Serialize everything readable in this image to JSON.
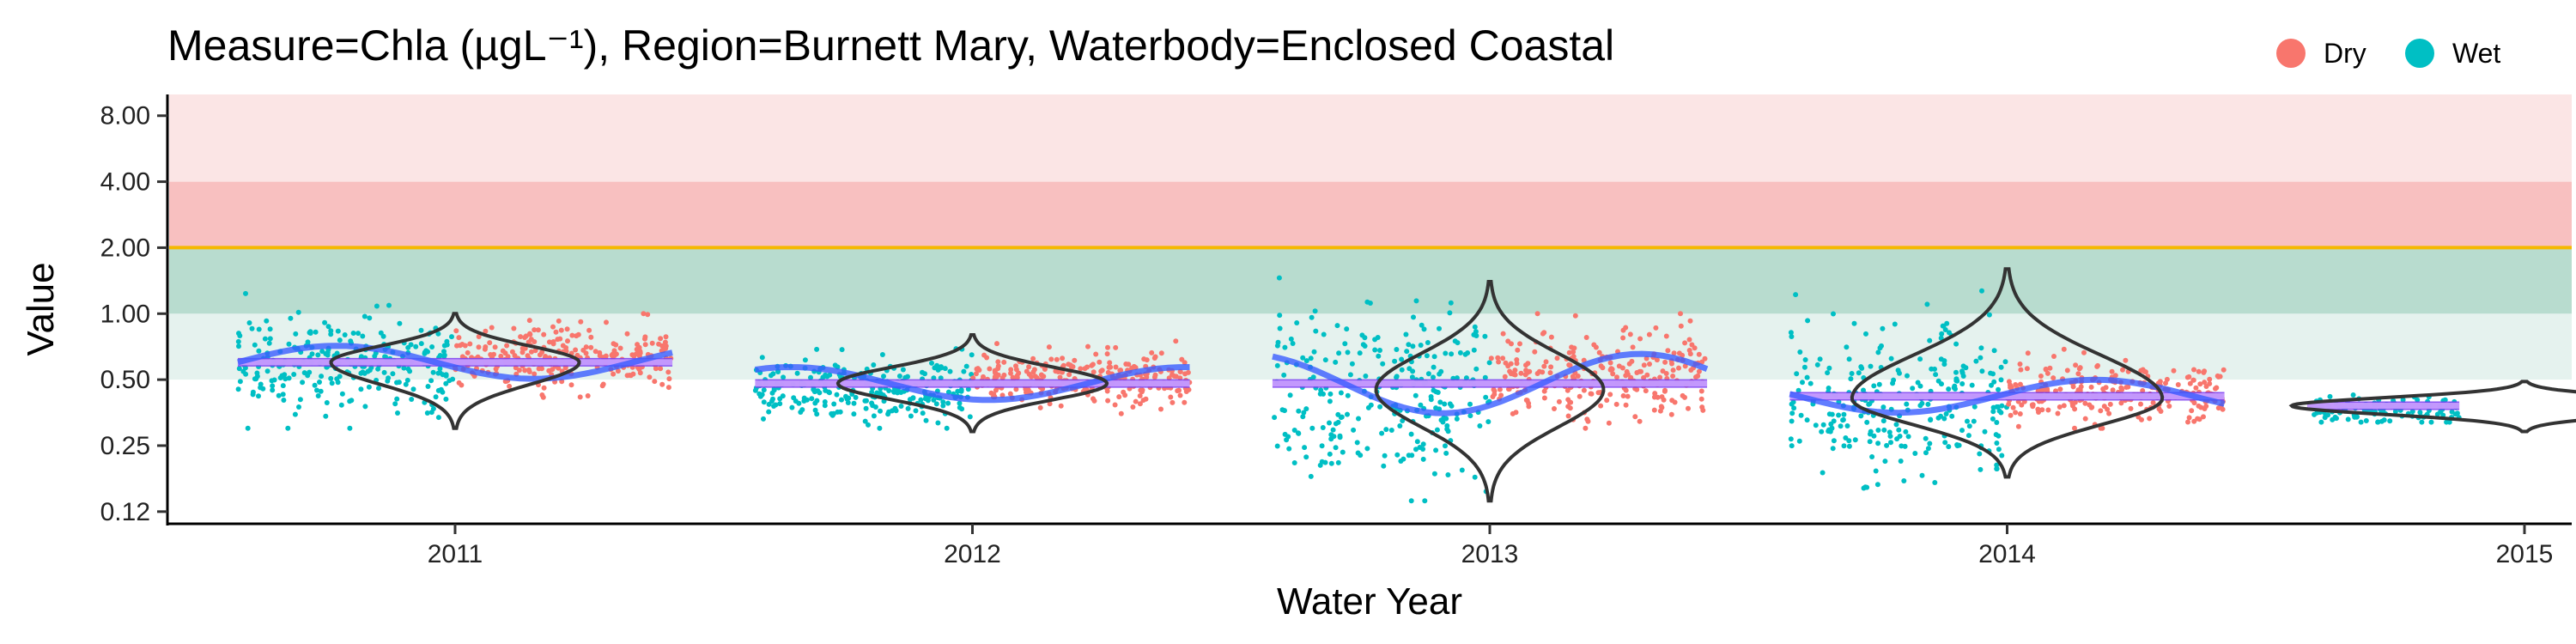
{
  "chart_data": {
    "type": "scatter",
    "title": "Measure=Chla (µgL⁻¹), Region=Burnett Mary, Waterbody=Enclosed Coastal",
    "xlabel": "Water Year",
    "ylabel": "Value",
    "y_scale": "log2",
    "ylim": [
      0.11,
      10.0
    ],
    "y_ticks": [
      "0.12",
      "0.25",
      "0.50",
      "1.00",
      "2.00",
      "4.00",
      "8.00"
    ],
    "y_tick_values": [
      0.125,
      0.25,
      0.5,
      1.0,
      2.0,
      4.0,
      8.0
    ],
    "x_ticks": [
      "2011",
      "2012",
      "2013",
      "2014",
      "2015"
    ],
    "guideline": 2.0,
    "bands": [
      {
        "from": 0.5,
        "to": 1.0,
        "color": "#e5f2ee"
      },
      {
        "from": 1.0,
        "to": 2.0,
        "color": "#b8dccf"
      },
      {
        "from": 2.0,
        "to": 4.0,
        "color": "#f8c0c0"
      },
      {
        "from": 4.0,
        "to": 10.0,
        "color": "#fbe5e5"
      }
    ],
    "colors": {
      "Dry": "#f8766d",
      "Wet": "#00bfc4",
      "trend": "#7a3cf0",
      "median": "#c9a0ff",
      "guideline": "#f5b800",
      "violin": "#333333"
    },
    "legend": {
      "position": "top-right",
      "entries": [
        "Dry",
        "Wet"
      ]
    },
    "years": [
      {
        "year": "2011",
        "median": 0.6,
        "wet_median": 0.58,
        "dry_median": 0.63,
        "wet_range": [
          0.3,
          1.3
        ],
        "dry_range": [
          0.4,
          1.0
        ],
        "violin_range": [
          0.3,
          1.0
        ],
        "violin_mode": 0.6,
        "violin_width": 0.24
      },
      {
        "year": "2012",
        "median": 0.48,
        "wet_median": 0.45,
        "dry_median": 0.5,
        "wet_range": [
          0.3,
          0.75
        ],
        "dry_range": [
          0.35,
          0.75
        ],
        "violin_range": [
          0.29,
          0.8
        ],
        "violin_mode": 0.48,
        "violin_width": 0.26
      },
      {
        "year": "2013",
        "median": 0.48,
        "wet_median": 0.42,
        "dry_median": 0.52,
        "wet_range": [
          0.14,
          1.5
        ],
        "dry_range": [
          0.3,
          1.0
        ],
        "violin_range": [
          0.14,
          1.4
        ],
        "violin_mode": 0.45,
        "violin_width": 0.22
      },
      {
        "year": "2014",
        "median": 0.42,
        "wet_median": 0.4,
        "dry_median": 0.44,
        "wet_range": [
          0.16,
          1.6
        ],
        "dry_range": [
          0.3,
          0.7
        ],
        "violin_range": [
          0.18,
          1.6
        ],
        "violin_mode": 0.41,
        "violin_width": 0.3
      },
      {
        "year": "2015",
        "median": 0.38,
        "wet_median": 0.36,
        "dry_median": 0.38,
        "wet_range": [
          0.32,
          0.48
        ],
        "dry_range": [
          0.35,
          0.4
        ],
        "violin_range": [
          0.29,
          0.49
        ],
        "violin_mode": 0.38,
        "violin_width": 0.45
      }
    ]
  }
}
